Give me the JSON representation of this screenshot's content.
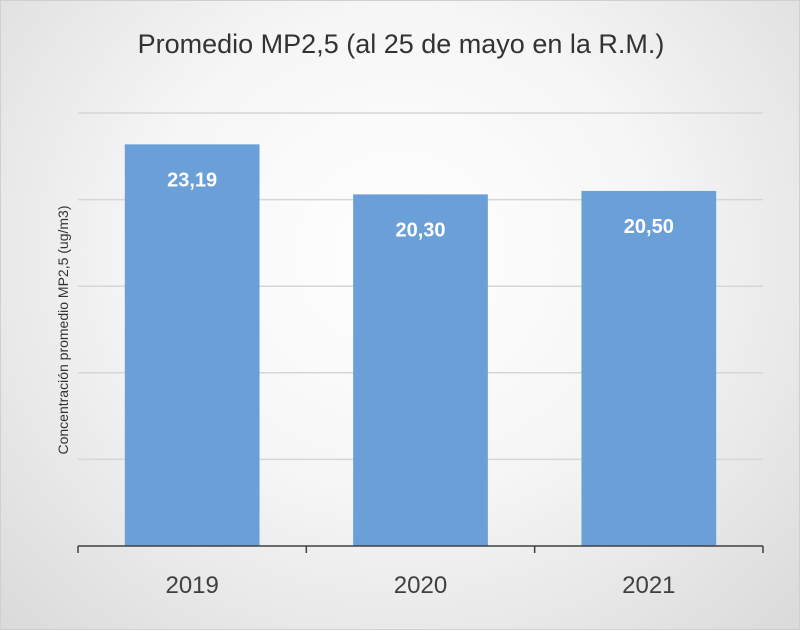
{
  "chart_data": {
    "type": "bar",
    "title": "Promedio MP2,5  (al 25 de  mayo en la R.M.)",
    "xlabel": "",
    "ylabel": "Concentración  promedio MP2,5 (ug/m3)",
    "categories": [
      "2019",
      "2020",
      "2021"
    ],
    "values": [
      23.19,
      20.3,
      20.5
    ],
    "data_labels": [
      "23,19",
      "20,30",
      "20,50"
    ],
    "ylim": [
      0,
      25
    ],
    "grid": true,
    "legend": "none",
    "colors": {
      "bar": "#6a9fd8",
      "bar_label": "#ffffff",
      "gridline": "#d6d6d6",
      "axis": "#404040",
      "text": "#404040"
    }
  }
}
